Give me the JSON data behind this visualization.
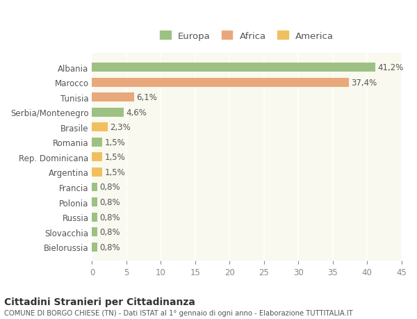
{
  "categories": [
    "Albania",
    "Marocco",
    "Tunisia",
    "Serbia/Montenegro",
    "Brasile",
    "Romania",
    "Rep. Dominicana",
    "Argentina",
    "Francia",
    "Polonia",
    "Russia",
    "Slovacchia",
    "Bielorussia"
  ],
  "values": [
    41.2,
    37.4,
    6.1,
    4.6,
    2.3,
    1.5,
    1.5,
    1.5,
    0.8,
    0.8,
    0.8,
    0.8,
    0.8
  ],
  "labels": [
    "41,2%",
    "37,4%",
    "6,1%",
    "4,6%",
    "2,3%",
    "1,5%",
    "1,5%",
    "1,5%",
    "0,8%",
    "0,8%",
    "0,8%",
    "0,8%",
    "0,8%"
  ],
  "continent": [
    "Europa",
    "Africa",
    "Africa",
    "Europa",
    "America",
    "Europa",
    "America",
    "America",
    "Europa",
    "Europa",
    "Europa",
    "Europa",
    "Europa"
  ],
  "colors": {
    "Europa": "#9dc183",
    "Africa": "#e8a87c",
    "America": "#f0c060"
  },
  "legend_items": [
    {
      "label": "Europa",
      "color": "#9dc183"
    },
    {
      "label": "Africa",
      "color": "#e8a87c"
    },
    {
      "label": "America",
      "color": "#f0c060"
    }
  ],
  "xlim": [
    0,
    45
  ],
  "xticks": [
    0,
    5,
    10,
    15,
    20,
    25,
    30,
    35,
    40,
    45
  ],
  "title1": "Cittadini Stranieri per Cittadinanza",
  "title2": "COMUNE DI BORGO CHIESE (TN) - Dati ISTAT al 1° gennaio di ogni anno - Elaborazione TUTTITALIA.IT",
  "bg_color": "#ffffff",
  "plot_bg_color": "#f9f9f0",
  "grid_color": "#ffffff",
  "label_fontsize": 8.5,
  "tick_fontsize": 8.5,
  "bar_height": 0.6
}
